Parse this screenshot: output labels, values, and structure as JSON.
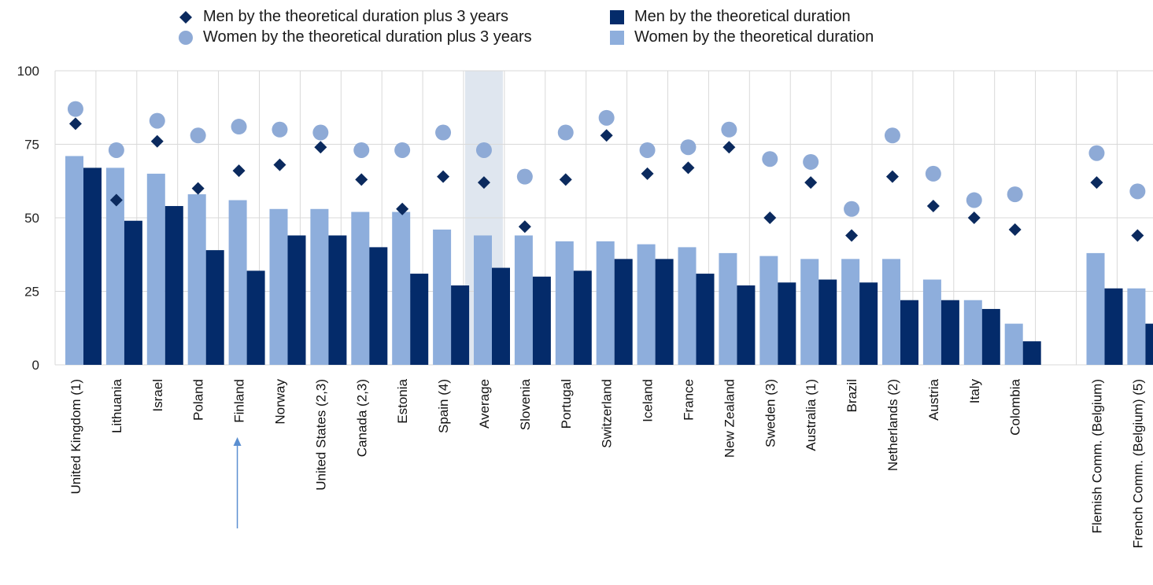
{
  "colors": {
    "men_bar": "#042b6a",
    "women_bar": "#8eaedc",
    "men_marker": "#0b2a5e",
    "women_marker": "#8eaad6",
    "average_band": "#dfe6ef",
    "grid": "#d9d9d9",
    "annotation_arrow": "#5b8fd1"
  },
  "legend": {
    "men_plus3": "Men by the theoretical duration plus 3 years",
    "women_plus3": "Women by the theoretical duration plus 3 years",
    "men_theoretical": "Men by the theoretical duration",
    "women_theoretical": "Women by the theoretical duration"
  },
  "chart_data": {
    "type": "bar",
    "ylim": [
      0,
      100
    ],
    "yticks": [
      "0",
      "25",
      "50",
      "75",
      "100"
    ],
    "grid": true,
    "legend_position": "top",
    "highlighted_category": "Average",
    "annotation": "arrow pointing to Finland",
    "categories": [
      "United Kingdom (1)",
      "Lithuania",
      "Israel",
      "Poland",
      "Finland",
      "Norway",
      "United States (2,3)",
      "Canada (2,3)",
      "Estonia",
      "Spain (4)",
      "Average",
      "Slovenia",
      "Portugal",
      "Switzerland",
      "Iceland",
      "France",
      "New Zealand",
      "Sweden (3)",
      "Australia (1)",
      "Brazil",
      "Netherlands (2)",
      "Austria",
      "Italy",
      "Colombia",
      "",
      "Flemish Comm. (Belgium)",
      "French Comm. (Belgium) (5)"
    ],
    "series": [
      {
        "name": "Women by the theoretical duration",
        "kind": "bar",
        "values": [
          71,
          67,
          65,
          58,
          56,
          53,
          53,
          52,
          52,
          46,
          44,
          44,
          42,
          42,
          41,
          40,
          38,
          37,
          36,
          36,
          36,
          29,
          22,
          14,
          null,
          38,
          26
        ]
      },
      {
        "name": "Men by the theoretical duration",
        "kind": "bar",
        "values": [
          67,
          49,
          54,
          39,
          32,
          44,
          44,
          40,
          31,
          27,
          33,
          30,
          32,
          36,
          36,
          31,
          27,
          28,
          29,
          28,
          22,
          22,
          19,
          8,
          null,
          26,
          14
        ]
      },
      {
        "name": "Women by the theoretical duration plus 3 years",
        "kind": "circle",
        "values": [
          87,
          73,
          83,
          78,
          81,
          80,
          79,
          73,
          73,
          79,
          73,
          64,
          79,
          84,
          73,
          74,
          80,
          70,
          69,
          53,
          78,
          65,
          56,
          58,
          null,
          72,
          59
        ]
      },
      {
        "name": "Men by the theoretical duration plus 3 years",
        "kind": "diamond",
        "values": [
          82,
          56,
          76,
          60,
          66,
          68,
          74,
          63,
          53,
          64,
          62,
          47,
          63,
          78,
          65,
          67,
          74,
          50,
          62,
          44,
          64,
          54,
          50,
          46,
          null,
          62,
          44
        ]
      }
    ]
  }
}
